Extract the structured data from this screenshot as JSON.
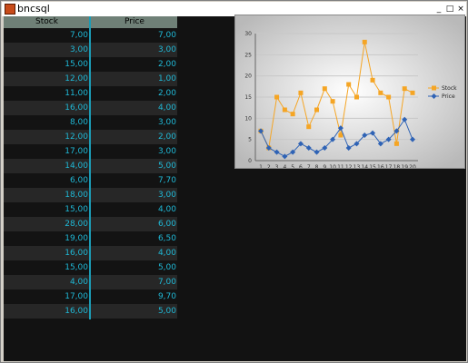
{
  "window": {
    "title": "bncsql",
    "minimize": "_",
    "maximize": "□",
    "close": "×"
  },
  "table": {
    "columns": [
      "Stock",
      "Price"
    ],
    "rows": [
      [
        "7,00",
        "7,00"
      ],
      [
        "3,00",
        "3,00"
      ],
      [
        "15,00",
        "2,00"
      ],
      [
        "12,00",
        "1,00"
      ],
      [
        "11,00",
        "2,00"
      ],
      [
        "16,00",
        "4,00"
      ],
      [
        "8,00",
        "3,00"
      ],
      [
        "12,00",
        "2,00"
      ],
      [
        "17,00",
        "3,00"
      ],
      [
        "14,00",
        "5,00"
      ],
      [
        "6,00",
        "7,70"
      ],
      [
        "18,00",
        "3,00"
      ],
      [
        "15,00",
        "4,00"
      ],
      [
        "28,00",
        "6,00"
      ],
      [
        "19,00",
        "6,50"
      ],
      [
        "16,00",
        "4,00"
      ],
      [
        "15,00",
        "5,00"
      ],
      [
        "4,00",
        "7,00"
      ],
      [
        "17,00",
        "9,70"
      ],
      [
        "16,00",
        "5,00"
      ]
    ]
  },
  "chart_data": {
    "type": "line",
    "x": [
      1,
      2,
      3,
      4,
      5,
      6,
      7,
      8,
      9,
      10,
      11,
      12,
      13,
      14,
      15,
      16,
      17,
      18,
      19,
      20
    ],
    "series": [
      {
        "name": "Stock",
        "color": "#f5a524",
        "values": [
          7,
          3,
          15,
          12,
          11,
          16,
          8,
          12,
          17,
          14,
          6,
          18,
          15,
          28,
          19,
          16,
          15,
          4,
          17,
          16
        ]
      },
      {
        "name": "Price",
        "color": "#2f63b5",
        "values": [
          7,
          3,
          2,
          1,
          2,
          4,
          3,
          2,
          3,
          5,
          7.7,
          3,
          4,
          6,
          6.5,
          4,
          5,
          7,
          9.7,
          5
        ]
      }
    ],
    "ylim": [
      0,
      30
    ],
    "yticks": [
      "0",
      "5",
      "10",
      "15",
      "20",
      "25",
      "30"
    ],
    "xticks": [
      "1",
      "2",
      "3",
      "4",
      "5",
      "6",
      "7",
      "8",
      "9",
      "10",
      "11",
      "12",
      "13",
      "14",
      "15",
      "16",
      "17",
      "18",
      "19",
      "20"
    ],
    "grid": true,
    "legend": "right"
  }
}
